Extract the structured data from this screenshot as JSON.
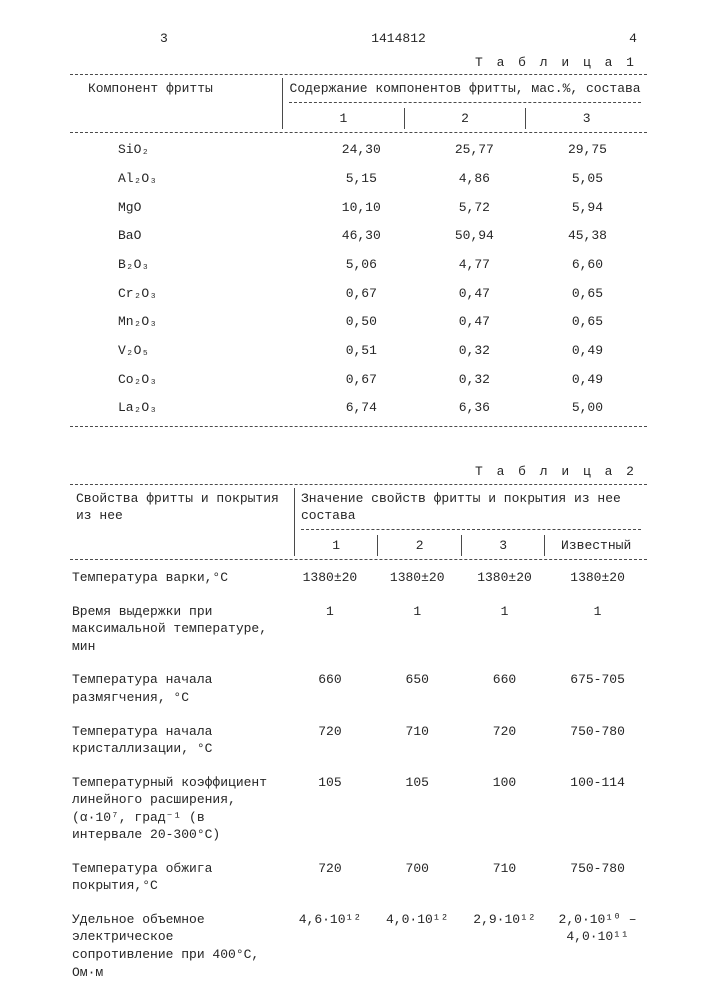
{
  "header": {
    "left_num": "3",
    "doc_num": "1414812",
    "right_num": "4"
  },
  "table1": {
    "caption": "Т а б л и ц а 1",
    "header_left": "Компонент фритты",
    "header_right": "Содержание компонентов фритты, мас.%, состава",
    "col_labels": [
      "1",
      "2",
      "3"
    ],
    "rows": [
      {
        "name": "SiO₂",
        "v": [
          "24,30",
          "25,77",
          "29,75"
        ]
      },
      {
        "name": "Al₂O₃",
        "v": [
          "5,15",
          "4,86",
          "5,05"
        ]
      },
      {
        "name": "MgO",
        "v": [
          "10,10",
          "5,72",
          "5,94"
        ]
      },
      {
        "name": "BaO",
        "v": [
          "46,30",
          "50,94",
          "45,38"
        ]
      },
      {
        "name": "B₂O₃",
        "v": [
          "5,06",
          "4,77",
          "6,60"
        ]
      },
      {
        "name": "Cr₂O₃",
        "v": [
          "0,67",
          "0,47",
          "0,65"
        ]
      },
      {
        "name": "Mn₂O₃",
        "v": [
          "0,50",
          "0,47",
          "0,65"
        ]
      },
      {
        "name": "V₂O₅",
        "v": [
          "0,51",
          "0,32",
          "0,49"
        ]
      },
      {
        "name": "Co₂O₃",
        "v": [
          "0,67",
          "0,32",
          "0,49"
        ]
      },
      {
        "name": "La₂O₃",
        "v": [
          "6,74",
          "6,36",
          "5,00"
        ]
      }
    ]
  },
  "table2": {
    "caption": "Т а б л и ц а 2",
    "header_left": "Свойства фритты и покрытия из нее",
    "header_right": "Значение свойств фритты и покрытия из нее состава",
    "col_labels": [
      "1",
      "2",
      "3",
      "Известный"
    ],
    "rows": [
      {
        "prop": "Температура варки,°С",
        "v": [
          "1380±20",
          "1380±20",
          "1380±20",
          "1380±20"
        ]
      },
      {
        "prop": "Время выдержки при максимальной температуре, мин",
        "v": [
          "1",
          "1",
          "1",
          "1"
        ]
      },
      {
        "prop": "Температура начала размягчения, °С",
        "v": [
          "660",
          "650",
          "660",
          "675-705"
        ]
      },
      {
        "prop": "Температура начала кристаллизации, °С",
        "v": [
          "720",
          "710",
          "720",
          "750-780"
        ]
      },
      {
        "prop": "Температурный коэффициент линейного расширения, (α·10⁷, град⁻¹ (в интервале 20-300°С)",
        "v": [
          "105",
          "105",
          "100",
          "100-114"
        ]
      },
      {
        "prop": "Температура обжига покрытия,°С",
        "v": [
          "720",
          "700",
          "710",
          "750-780"
        ]
      },
      {
        "prop": "Удельное объемное электрическое сопротивление при 400°С, Ом·м",
        "v": [
          "4,6·10¹²",
          "4,0·10¹²",
          "2,9·10¹²",
          "2,0·10¹⁰ – 4,0·10¹¹"
        ]
      }
    ]
  }
}
